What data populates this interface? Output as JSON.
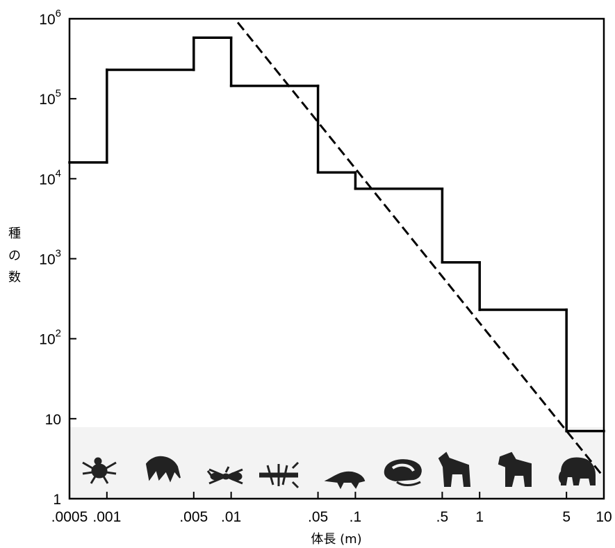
{
  "chart_data": {
    "type": "line",
    "xlabel": "体長 (m)",
    "ylabel_chars": [
      "種",
      "の",
      "数"
    ],
    "x_scale": "log",
    "y_scale": "log",
    "xlim": [
      0.0005,
      10
    ],
    "ylim": [
      1,
      1000000
    ],
    "grid": false,
    "x_ticks": [
      {
        "value": 0.0005,
        "label": ".0005"
      },
      {
        "value": 0.001,
        "label": ".001"
      },
      {
        "value": 0.005,
        "label": ".005"
      },
      {
        "value": 0.01,
        "label": ".01"
      },
      {
        "value": 0.05,
        "label": ".05"
      },
      {
        "value": 0.1,
        "label": ".1"
      },
      {
        "value": 0.5,
        "label": ".5"
      },
      {
        "value": 1,
        "label": "1"
      },
      {
        "value": 5,
        "label": "5"
      },
      {
        "value": 10,
        "label": "10"
      }
    ],
    "y_ticks": [
      {
        "value": 1,
        "base": "1",
        "exp": ""
      },
      {
        "value": 10,
        "base": "10",
        "exp": ""
      },
      {
        "value": 100,
        "base": "10",
        "exp": "2"
      },
      {
        "value": 1000,
        "base": "10",
        "exp": "3"
      },
      {
        "value": 10000,
        "base": "10",
        "exp": "4"
      },
      {
        "value": 100000,
        "base": "10",
        "exp": "5"
      },
      {
        "value": 1000000,
        "base": "10",
        "exp": "6"
      }
    ],
    "series": [
      {
        "style": "step",
        "color": "#000000",
        "dash": "solid",
        "bins": [
          {
            "x0": 0.0005,
            "x1": 0.001,
            "y": 16000
          },
          {
            "x0": 0.001,
            "x1": 0.005,
            "y": 230000
          },
          {
            "x0": 0.005,
            "x1": 0.01,
            "y": 580000
          },
          {
            "x0": 0.01,
            "x1": 0.05,
            "y": 145000
          },
          {
            "x0": 0.05,
            "x1": 0.1,
            "y": 12000
          },
          {
            "x0": 0.1,
            "x1": 0.5,
            "y": 7500
          },
          {
            "x0": 0.5,
            "x1": 1,
            "y": 900
          },
          {
            "x0": 1,
            "x1": 5,
            "y": 230
          },
          {
            "x0": 5,
            "x1": 10,
            "y": 7
          }
        ]
      },
      {
        "style": "line",
        "color": "#000000",
        "dash": "dashed",
        "points": [
          {
            "x": 0.0113,
            "y": 900000
          },
          {
            "x": 9.6,
            "y": 2
          }
        ]
      }
    ],
    "animal_icons": [
      "mite-icon",
      "beetle-icon",
      "ant-icon",
      "insect-icon",
      "lizard-icon",
      "rodent-icon",
      "dog-icon",
      "horse-icon",
      "elephant-icon"
    ]
  }
}
